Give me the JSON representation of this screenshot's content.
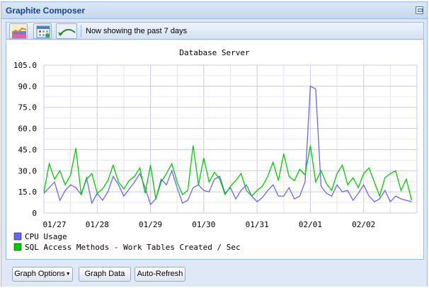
{
  "window": {
    "title": "Graphite Composer"
  },
  "toolbar": {
    "status": "Now showing the past 7 days",
    "buttons": [
      {
        "icon": "graph-icon"
      },
      {
        "icon": "calendar-icon"
      },
      {
        "icon": "undo-arc-icon"
      }
    ]
  },
  "chart_data": {
    "type": "line",
    "title": "Database Server",
    "ylim": [
      0,
      105
    ],
    "yticks": [
      "0",
      "15.0",
      "30.0",
      "45.0",
      "60.0",
      "75.0",
      "90.0",
      "105.0"
    ],
    "xticks": [
      "01/27",
      "01/28",
      "01/29",
      "01/30",
      "01/31",
      "02/01",
      "02/02"
    ],
    "x": [
      0,
      0.1,
      0.2,
      0.3,
      0.4,
      0.5,
      0.6,
      0.7,
      0.8,
      0.9,
      1,
      1.1,
      1.2,
      1.3,
      1.4,
      1.5,
      1.6,
      1.7,
      1.8,
      1.9,
      2,
      2.1,
      2.2,
      2.3,
      2.4,
      2.5,
      2.6,
      2.7,
      2.8,
      2.9,
      3,
      3.1,
      3.2,
      3.3,
      3.4,
      3.5,
      3.6,
      3.7,
      3.8,
      3.9,
      4,
      4.1,
      4.2,
      4.3,
      4.4,
      4.5,
      4.6,
      4.7,
      4.8,
      4.9,
      5,
      5.1,
      5.2,
      5.3,
      5.4,
      5.5,
      5.6,
      5.7,
      5.8,
      5.9,
      6,
      6.1,
      6.2,
      6.3,
      6.4,
      6.5,
      6.6,
      6.7,
      6.8,
      6.9
    ],
    "series": [
      {
        "name": "CPU Usage",
        "color": "#6666ff",
        "values": [
          14,
          18,
          22,
          9,
          16,
          20,
          18,
          13,
          25,
          7,
          14,
          9,
          15,
          26,
          20,
          12,
          17,
          22,
          28,
          18,
          6,
          10,
          24,
          20,
          30,
          18,
          7,
          9,
          18,
          20,
          16,
          15,
          24,
          26,
          14,
          18,
          10,
          16,
          20,
          12,
          8,
          11,
          16,
          20,
          12,
          12,
          18,
          10,
          12,
          22,
          90,
          88,
          19,
          14,
          12,
          20,
          15,
          16,
          9,
          14,
          20,
          12,
          8,
          10,
          16,
          8,
          12,
          10,
          9,
          8
        ]
      },
      {
        "name": "SQL Access Methods - Work Tables Created / Sec",
        "color": "#00cc00",
        "values": [
          15,
          35,
          24,
          30,
          20,
          27,
          46,
          13,
          24,
          28,
          14,
          17,
          23,
          34,
          22,
          17,
          23,
          26,
          32,
          14,
          34,
          10,
          22,
          28,
          35,
          22,
          13,
          16,
          48,
          20,
          39,
          22,
          29,
          24,
          13,
          19,
          23,
          28,
          16,
          12,
          16,
          19,
          26,
          36,
          23,
          42,
          26,
          23,
          31,
          27,
          48,
          22,
          30,
          21,
          16,
          28,
          34,
          20,
          25,
          18,
          28,
          32,
          22,
          12,
          25,
          28,
          30,
          16,
          24,
          9
        ]
      }
    ]
  },
  "buttons": {
    "graph_options": "Graph Options",
    "graph_data": "Graph Data",
    "auto_refresh": "Auto-Refresh"
  }
}
